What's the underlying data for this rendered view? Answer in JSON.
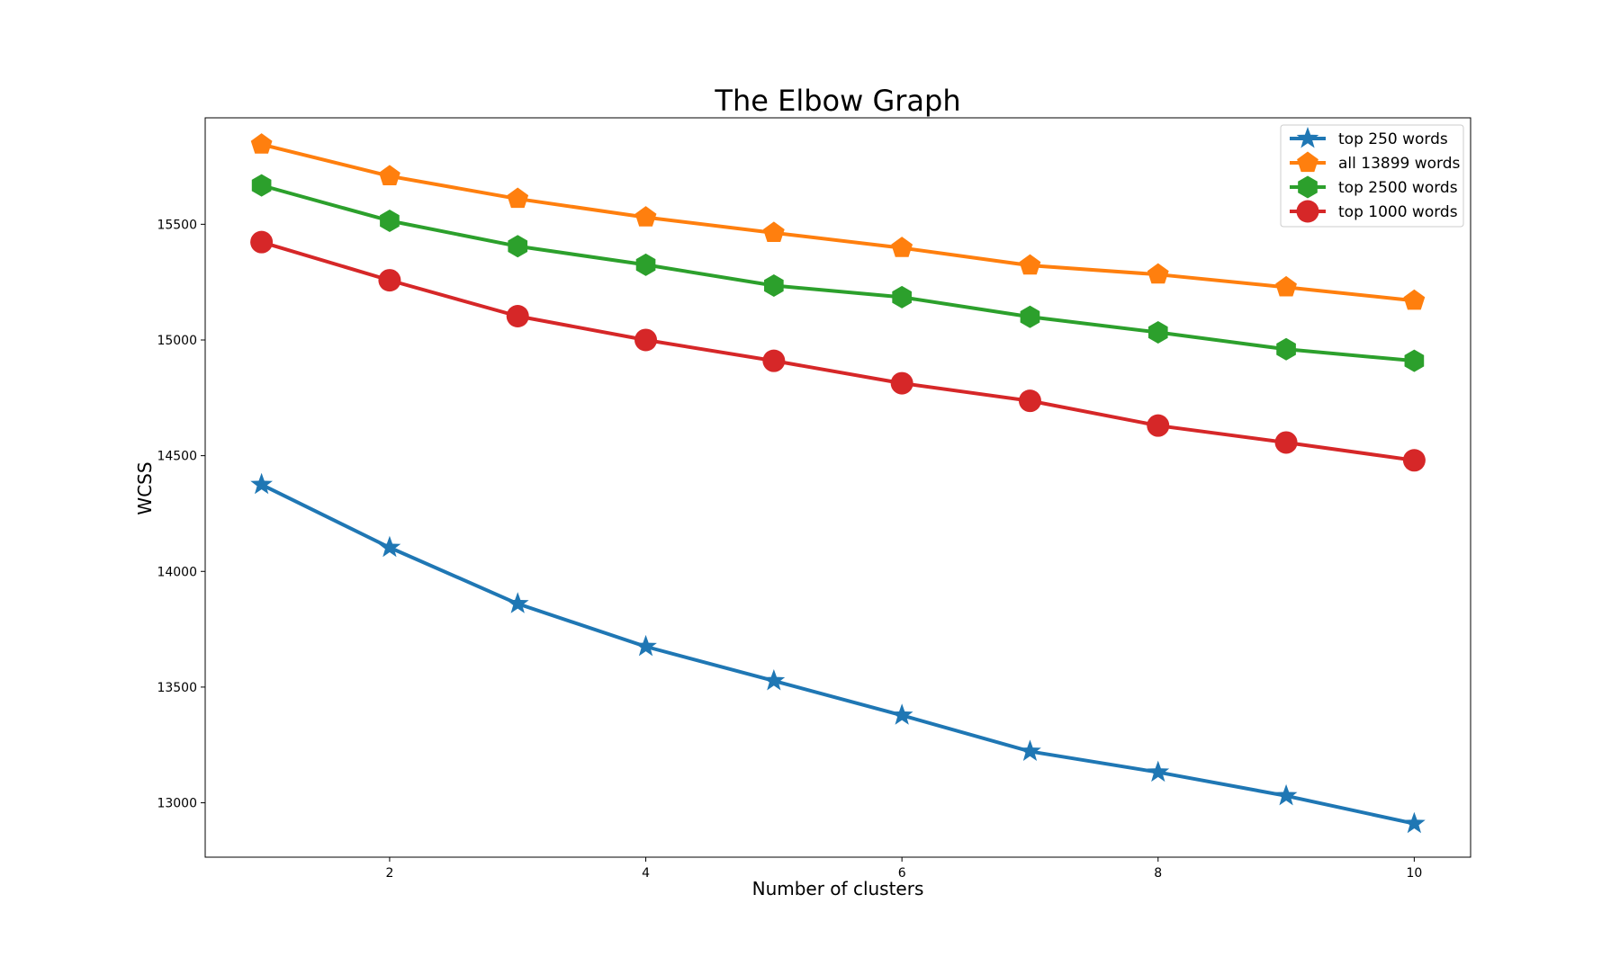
{
  "chart_data": {
    "type": "line",
    "title": "The Elbow Graph",
    "xlabel": "Number of clusters",
    "ylabel": "WCSS",
    "xlim": [
      0.56,
      10.44
    ],
    "ylim": [
      12765,
      15960
    ],
    "xticks": [
      2,
      4,
      6,
      8,
      10
    ],
    "yticks": [
      13000,
      13500,
      14000,
      14500,
      15000,
      15500
    ],
    "grid": false,
    "legend_position": "upper right",
    "x": [
      1,
      2,
      3,
      4,
      5,
      6,
      7,
      8,
      9,
      10
    ],
    "series": [
      {
        "name": "top 250 words",
        "color": "#1f77b4",
        "marker": "star",
        "values": [
          14375,
          14103,
          13860,
          13675,
          13527,
          13378,
          13222,
          13132,
          13030,
          12910
        ]
      },
      {
        "name": "all 13899 words",
        "color": "#ff7f0e",
        "marker": "pentagon",
        "values": [
          15845,
          15708,
          15610,
          15530,
          15463,
          15398,
          15322,
          15283,
          15228,
          15170
        ]
      },
      {
        "name": "top 2500 words",
        "color": "#2ca02c",
        "marker": "hexagon",
        "values": [
          15668,
          15515,
          15405,
          15325,
          15235,
          15185,
          15100,
          15033,
          14960,
          14910
        ]
      },
      {
        "name": "top 1000 words",
        "color": "#d62728",
        "marker": "circle",
        "values": [
          15423,
          15258,
          15103,
          15000,
          14910,
          14813,
          14737,
          14630,
          14557,
          14480
        ]
      }
    ]
  }
}
